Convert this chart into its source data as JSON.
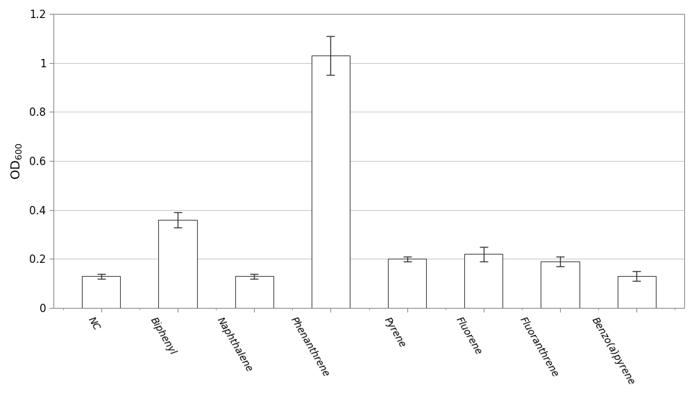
{
  "categories": [
    "NC",
    "Biphenyl",
    "Naphthalene",
    "Phenanthrene",
    "Pyrene",
    "Fluorene",
    "Fluoranthrene",
    "Benzo(a)pyrene"
  ],
  "values": [
    0.13,
    0.36,
    0.13,
    1.03,
    0.2,
    0.22,
    0.19,
    0.13
  ],
  "errors": [
    0.01,
    0.03,
    0.01,
    0.08,
    0.01,
    0.03,
    0.02,
    0.02
  ],
  "bar_color": "#ffffff",
  "bar_edgecolor": "#444444",
  "error_color": "#333333",
  "ylabel": "OD$_{600}$",
  "ylim": [
    0,
    1.2
  ],
  "yticks": [
    0,
    0.2,
    0.4,
    0.6,
    0.8,
    1.0,
    1.2
  ],
  "ytick_labels": [
    "0",
    "0.2",
    "0.4",
    "0.6",
    "0.8",
    "1",
    "1.2"
  ],
  "grid_color": "#bbbbbb",
  "background_color": "#ffffff",
  "bar_width": 0.5,
  "figsize": [
    10.0,
    5.71
  ],
  "dpi": 100,
  "spine_color": "#888888",
  "label_rotation": -60
}
